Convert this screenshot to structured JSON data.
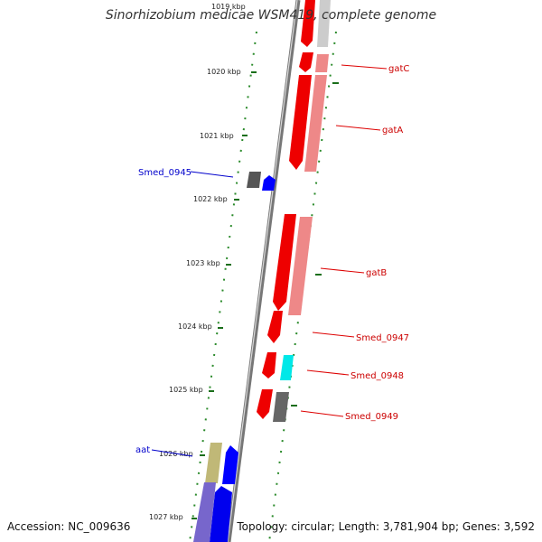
{
  "title": "Sinorhizobium medicae WSM419, complete genome",
  "footer": {
    "accession": "Accession: NC_009636",
    "summary": "Topology: circular; Length: 3,781,904 bp; Genes: 3,592"
  },
  "ticks": [
    "1019 kbp",
    "1020 kbp",
    "1021 kbp",
    "1022 kbp",
    "1023 kbp",
    "1024 kbp",
    "1025 kbp",
    "1026 kbp",
    "1027 kbp"
  ],
  "genes": [
    {
      "label": "gatC",
      "color": "#cc0000"
    },
    {
      "label": "gatA",
      "color": "#cc0000"
    },
    {
      "label": "Smed_0945",
      "color": "#0000cc"
    },
    {
      "label": "gatB",
      "color": "#cc0000"
    },
    {
      "label": "Smed_0947",
      "color": "#cc0000"
    },
    {
      "label": "Smed_0948",
      "color": "#cc0000"
    },
    {
      "label": "Smed_0949",
      "color": "#cc0000"
    },
    {
      "label": "aat",
      "color": "#0000cc"
    }
  ]
}
